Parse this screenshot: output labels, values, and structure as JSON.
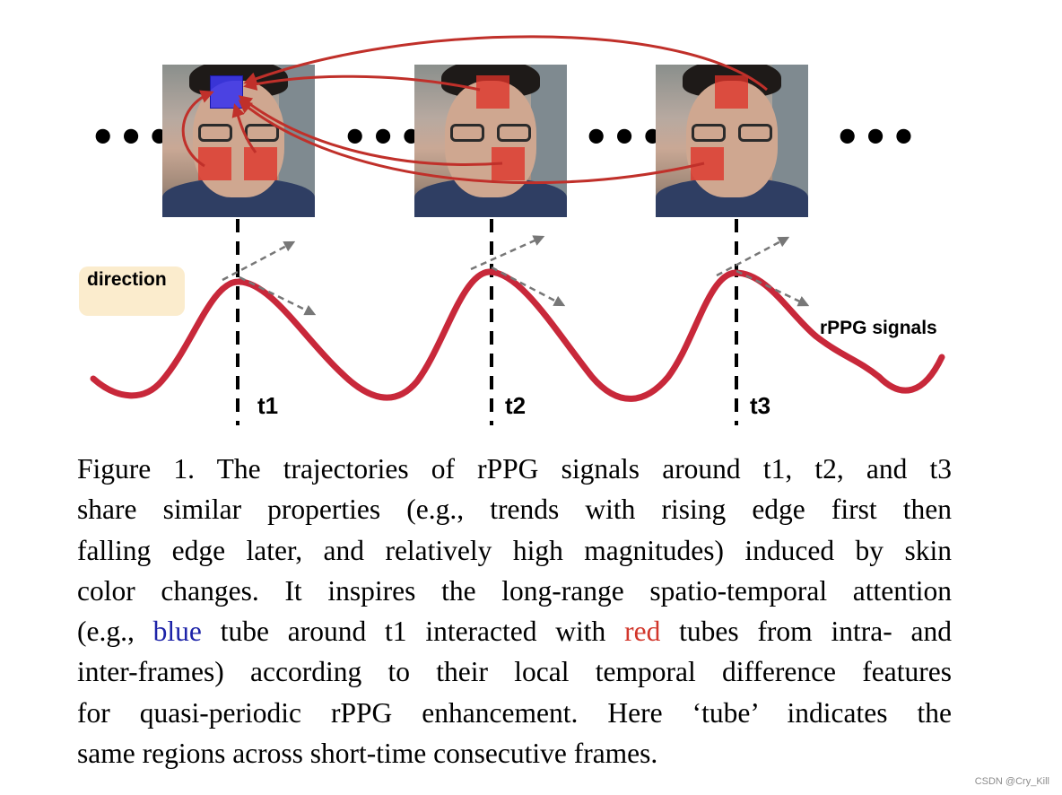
{
  "figure": {
    "ellipsis": "•••",
    "frames": [
      "frame-1",
      "frame-2",
      "frame-3"
    ],
    "time_labels": [
      "t1",
      "t2",
      "t3"
    ],
    "legend_label": "direction",
    "signal_label": "rPPG signals",
    "colors": {
      "signal": "#c8283a",
      "arrows": "#c0302a",
      "direction": "#777777",
      "blue_tube": "#3c37eb",
      "red_tube": "#de3228",
      "legend_bg": "#fbeccd"
    }
  },
  "caption": {
    "lines": [
      [
        "Figure 1.   The trajectories of rPPG signals around t1, t2, and t3"
      ],
      [
        "share similar properties (e.g., trends with rising edge first then"
      ],
      [
        "falling edge later, and relatively high magnitudes) induced by skin"
      ],
      [
        "color changes. It inspires the long-range spatio-temporal attention"
      ],
      [
        "(e.g., ",
        "blue",
        " tube around t1 interacted with ",
        "red",
        " tubes from intra- and"
      ],
      [
        "inter-frames) according to their local temporal difference features"
      ],
      [
        "for quasi-periodic rPPG enhancement.  Here ‘tube’ indicates the"
      ],
      [
        "same regions across short-time consecutive frames."
      ]
    ]
  },
  "watermark": "CSDN @Cry_Kill"
}
